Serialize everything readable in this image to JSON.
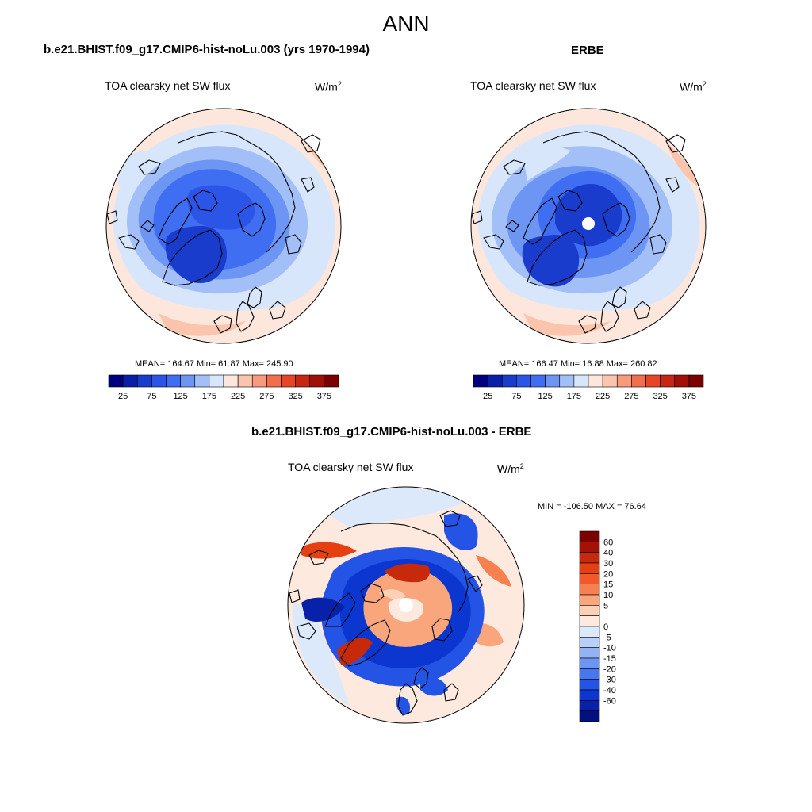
{
  "title": "ANN",
  "palette_a": [
    "#00007f",
    "#0a1fa8",
    "#1a3ccc",
    "#2b55e6",
    "#3f6ef2",
    "#6d95f4",
    "#a3bff7",
    "#d7e6fb",
    "#fde6dc",
    "#fbc4ad",
    "#f89b7c",
    "#f26e4c",
    "#e74525",
    "#c72612",
    "#a01007",
    "#7c0000"
  ],
  "palette_d": [
    "#7c0000",
    "#a31204",
    "#c72a0a",
    "#e44012",
    "#f2582a",
    "#f6804f",
    "#f9a67c",
    "#fcd0b7",
    "#fde9de",
    "#dce9fb",
    "#b8cff8",
    "#93b3f6",
    "#6d95f4",
    "#4677ef",
    "#2454e6",
    "#0b36d0",
    "#0722a8",
    "#00107e"
  ],
  "panel_a": {
    "title": "b.e21.BHIST.f09_g17.CMIP6-hist-noLu.003 (yrs 1970-1994)",
    "variable": "TOA clearsky net SW flux",
    "units": "W/m",
    "units_exp": "2",
    "stats": "MEAN= 164.67  Min=  61.87  Max= 245.90",
    "ticks": [
      "25",
      "75",
      "125",
      "175",
      "225",
      "275",
      "325",
      "375"
    ]
  },
  "panel_b": {
    "title": "ERBE",
    "variable": "TOA clearsky net SW flux",
    "units": "W/m",
    "units_exp": "2",
    "stats": "MEAN= 166.47  Min=  16.88  Max= 260.82",
    "ticks": [
      "25",
      "75",
      "125",
      "175",
      "225",
      "275",
      "325",
      "375"
    ]
  },
  "panel_c": {
    "title": "b.e21.BHIST.f09_g17.CMIP6-hist-noLu.003 - ERBE",
    "variable": "TOA clearsky net SW flux",
    "units": "W/m",
    "units_exp": "2",
    "stats": "MIN = -106.50 MAX =  76.64",
    "ticks": [
      "60",
      "40",
      "30",
      "20",
      "15",
      "10",
      "5",
      "0",
      "-5",
      "-10",
      "-15",
      "-20",
      "-30",
      "-40",
      "-60"
    ]
  }
}
